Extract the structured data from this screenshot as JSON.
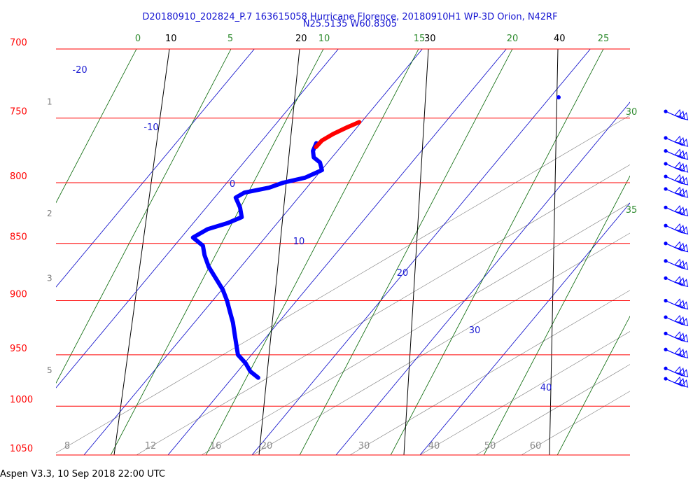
{
  "header": {
    "line1": "D20180910_202824_P.7 163615058 Hurricane Florence, 20180910H1 WP-3D Orion, N42RF",
    "line2": "N25.5135 W60.8305"
  },
  "footer": {
    "text": "Aspen V3.3, 10 Sep 2018  22:00 UTC"
  },
  "colors": {
    "isobar": "#ff0000",
    "isotherm": "#000000",
    "dry_adiabat": "#0000c8",
    "moist_adiabat": "#006400",
    "mixing_ratio": "#7a7a7a",
    "dewpoint_trace": "#ff0000",
    "temperature_trace": "#0000ff",
    "wind_barb": "#0000ff",
    "pressure_label": "#ff0000",
    "height_label": "#7a7a7a"
  },
  "chart_data": {
    "type": "line",
    "diagram": "skew-T log-P",
    "ylim": [
      1050,
      700
    ],
    "pressure_levels": [
      700,
      750,
      800,
      850,
      900,
      950,
      1000,
      1050
    ],
    "height_labels": [
      "1",
      "2",
      "3",
      "5"
    ],
    "height_label_pressures": [
      738,
      825,
      880,
      965
    ],
    "isotherms": [
      10,
      20,
      30,
      40
    ],
    "dry_adiabats": [
      -20,
      -10,
      0,
      10,
      20,
      30,
      40
    ],
    "moist_adiabats": [
      0,
      5,
      10,
      15,
      20,
      25,
      30,
      35
    ],
    "mixing_ratio_lines": [
      "8",
      "12",
      "16",
      "20",
      "30",
      "40",
      "50",
      "60"
    ],
    "series": [
      {
        "key": "temperature",
        "points": [
          [
            769,
            22.0
          ],
          [
            775,
            21.8
          ],
          [
            780,
            21.9
          ],
          [
            784,
            22.4
          ],
          [
            790,
            22.6
          ],
          [
            796,
            21.4
          ],
          [
            800,
            19.8
          ],
          [
            804,
            18.8
          ],
          [
            808,
            17.0
          ],
          [
            812,
            16.4
          ],
          [
            820,
            16.8
          ],
          [
            828,
            17.0
          ],
          [
            833,
            16.0
          ],
          [
            838,
            14.6
          ],
          [
            845,
            13.6
          ],
          [
            852,
            14.4
          ],
          [
            860,
            14.6
          ],
          [
            870,
            15.0
          ],
          [
            880,
            15.6
          ],
          [
            890,
            16.2
          ],
          [
            900,
            16.6
          ],
          [
            910,
            16.9
          ],
          [
            920,
            17.2
          ],
          [
            930,
            17.4
          ],
          [
            940,
            17.6
          ],
          [
            950,
            17.8
          ],
          [
            958,
            18.4
          ],
          [
            966,
            18.8
          ],
          [
            972,
            19.4
          ]
        ]
      },
      {
        "key": "dewpoint",
        "points": [
          [
            753,
            25.1
          ],
          [
            757,
            24.2
          ],
          [
            762,
            23.2
          ],
          [
            767,
            22.4
          ],
          [
            772,
            22.0
          ]
        ]
      }
    ],
    "wind_barb_pressures": [
      745,
      765,
      775,
      785,
      795,
      805,
      820,
      835,
      850,
      865,
      880,
      900,
      915,
      930,
      945,
      963,
      973
    ]
  }
}
